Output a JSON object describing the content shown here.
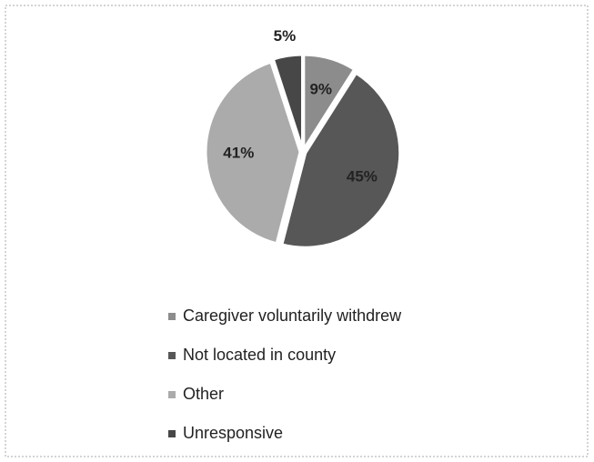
{
  "chart_data": {
    "type": "pie",
    "categories": [
      "Caregiver voluntarily withdrew",
      "Not located in county",
      "Other",
      "Unresponsive"
    ],
    "values": [
      9,
      45,
      41,
      5
    ],
    "value_labels": [
      "9%",
      "45%",
      "41%",
      "5%"
    ],
    "colors": [
      "#8c8c8c",
      "#575757",
      "#ababab",
      "#474747"
    ],
    "legend": "bottom"
  }
}
